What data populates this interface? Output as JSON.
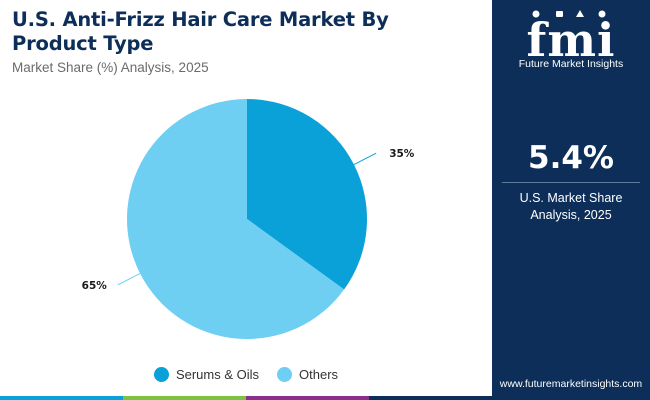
{
  "header": {
    "title": "U.S. Anti-Frizz Hair Care Market By Product Type",
    "subtitle": "Market Share (%) Analysis, 2025"
  },
  "chart_data": {
    "type": "pie",
    "title": "U.S. Anti-Frizz Hair Care Market By Product Type",
    "subtitle": "Market Share (%) Analysis, 2025",
    "categories": [
      "Serums & Oils",
      "Others"
    ],
    "values": [
      35,
      65
    ],
    "labels": [
      "35%",
      "65%"
    ],
    "colors": [
      "#0aa1d8",
      "#6ecff3"
    ],
    "legend_position": "bottom",
    "start_angle_deg": 0,
    "direction": "clockwise"
  },
  "legend": {
    "items": [
      {
        "label": "Serums & Oils",
        "color": "#0aa1d8"
      },
      {
        "label": "Others",
        "color": "#6ecff3"
      }
    ]
  },
  "brand": {
    "name": "Future Market Insights",
    "website": "www.futuremarketinsights.com",
    "logo_text": "fmi"
  },
  "stat": {
    "value": "5.4%",
    "caption_line1": "U.S. Market Share",
    "caption_line2": "Analysis, 2025"
  },
  "colors": {
    "panel": "#0c2e58",
    "title": "#0c2e58",
    "bottom_bar": [
      "#0aa1d8",
      "#7dc242",
      "#8a2f8c",
      "#0c2e58"
    ]
  }
}
